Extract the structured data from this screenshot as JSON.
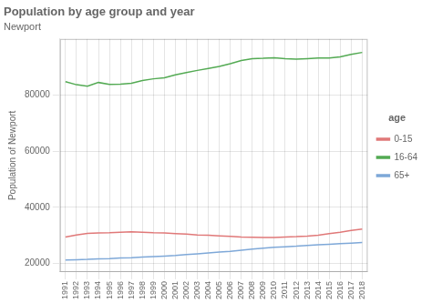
{
  "chart_data": {
    "type": "line",
    "title": "Population by age group and year",
    "subtitle": "Newport",
    "y_label": "Population of Newport",
    "x": [
      1991,
      1992,
      1993,
      1994,
      1995,
      1996,
      1997,
      1998,
      1999,
      2000,
      2001,
      2002,
      2003,
      2004,
      2005,
      2006,
      2007,
      2008,
      2009,
      2010,
      2011,
      2012,
      2013,
      2014,
      2015,
      2016,
      2017,
      2018
    ],
    "series": [
      {
        "name": "0-15",
        "color": "#E07878",
        "values": [
          29500,
          30200,
          30800,
          30900,
          31000,
          31200,
          31300,
          31200,
          31000,
          30900,
          30700,
          30500,
          30200,
          30100,
          29900,
          29700,
          29500,
          29400,
          29300,
          29300,
          29500,
          29600,
          29800,
          30100,
          30700,
          31200,
          31800,
          32300
        ]
      },
      {
        "name": "16-64",
        "color": "#53AA53",
        "values": [
          84800,
          83700,
          83200,
          84500,
          83800,
          83900,
          84200,
          85200,
          85800,
          86200,
          87200,
          88000,
          88800,
          89500,
          90200,
          91200,
          92300,
          93000,
          93100,
          93300,
          93000,
          92800,
          93000,
          93200,
          93200,
          93600,
          94500,
          95200
        ]
      },
      {
        "name": "65+",
        "color": "#7EA8D8",
        "values": [
          21300,
          21400,
          21500,
          21700,
          21800,
          22000,
          22100,
          22300,
          22500,
          22700,
          22900,
          23200,
          23500,
          23800,
          24100,
          24400,
          24800,
          25200,
          25500,
          25800,
          26000,
          26200,
          26500,
          26700,
          26900,
          27100,
          27300,
          27500
        ]
      }
    ],
    "legend_title": "age",
    "xlim": [
      1990.5,
      2018.5
    ],
    "xticks": [
      1991,
      1992,
      1993,
      1994,
      1995,
      1996,
      1997,
      1998,
      1999,
      2000,
      2001,
      2002,
      2003,
      2004,
      2005,
      2006,
      2007,
      2008,
      2009,
      2010,
      2011,
      2012,
      2013,
      2014,
      2015,
      2016,
      2017,
      2018
    ],
    "ylim": [
      17000,
      100000
    ],
    "yticks": [
      20000,
      40000,
      60000,
      80000
    ],
    "grid": true,
    "legend": "right"
  }
}
